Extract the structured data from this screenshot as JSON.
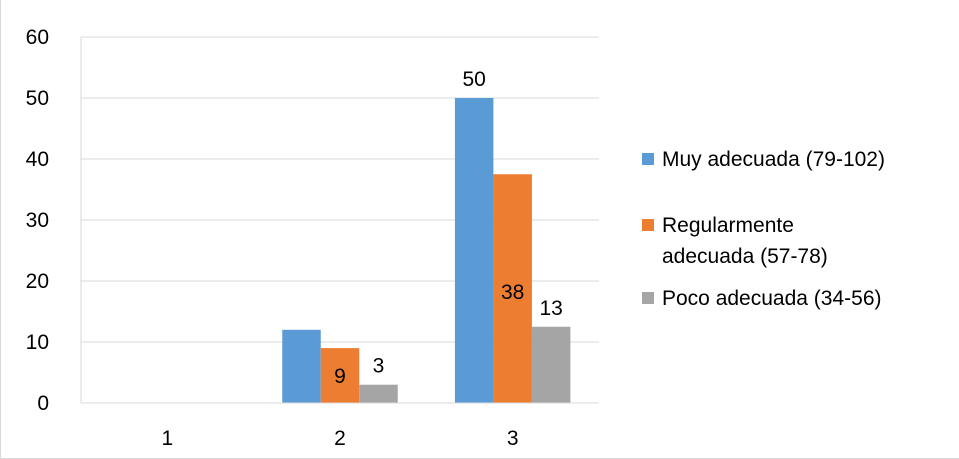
{
  "chart_data": {
    "type": "bar",
    "categories": [
      "1",
      "2",
      "3"
    ],
    "series": [
      {
        "name": "Muy adecuada (79-102)",
        "color": "#5b9bd5",
        "values": [
          0,
          12,
          50
        ],
        "labels": [
          "",
          "",
          "50"
        ]
      },
      {
        "name": "Regularmente adecuada  (57-78)",
        "color": "#ed7d31",
        "values": [
          0,
          9,
          37.5
        ],
        "labels": [
          "",
          "9",
          "38"
        ]
      },
      {
        "name": "Poco adecuada (34-56)",
        "color": "#a5a5a5",
        "values": [
          0,
          3,
          12.5
        ],
        "labels": [
          "",
          "3",
          "13"
        ]
      }
    ],
    "ylim": [
      0,
      60
    ],
    "yticks": [
      "0",
      "10",
      "20",
      "30",
      "40",
      "50",
      "60"
    ],
    "grid": true,
    "legend_position": "right"
  }
}
